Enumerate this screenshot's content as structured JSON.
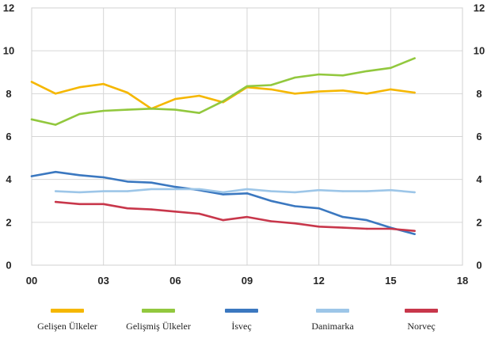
{
  "chart_data": {
    "type": "line",
    "x_tick_labels": [
      "00",
      "03",
      "06",
      "09",
      "12",
      "15",
      "18"
    ],
    "y_tick_labels": [
      "0",
      "2",
      "4",
      "6",
      "8",
      "10",
      "12"
    ],
    "xlim": [
      2000,
      2018
    ],
    "ylim": [
      0,
      12
    ],
    "grid": true,
    "legend_position": "bottom",
    "series": [
      {
        "name": "Gelişen Ülkeler",
        "color": "#F5B700",
        "x": [
          2000,
          2001,
          2002,
          2003,
          2004,
          2005,
          2006,
          2007,
          2008,
          2009,
          2010,
          2011,
          2012,
          2013,
          2014,
          2015,
          2016
        ],
        "values": [
          8.55,
          8.0,
          8.3,
          8.45,
          8.05,
          7.3,
          7.75,
          7.9,
          7.6,
          8.3,
          8.2,
          8.0,
          8.1,
          8.15,
          8.0,
          8.2,
          8.05
        ]
      },
      {
        "name": "Gelişmiş Ülkeler",
        "color": "#92C83E",
        "x": [
          2000,
          2001,
          2002,
          2003,
          2004,
          2005,
          2006,
          2007,
          2008,
          2009,
          2010,
          2011,
          2012,
          2013,
          2014,
          2015,
          2016
        ],
        "values": [
          6.8,
          6.55,
          7.05,
          7.2,
          7.25,
          7.3,
          7.25,
          7.1,
          7.65,
          8.35,
          8.4,
          8.75,
          8.9,
          8.85,
          9.05,
          9.2,
          9.65
        ]
      },
      {
        "name": "İsveç",
        "color": "#3B78C0",
        "x": [
          2000,
          2001,
          2002,
          2003,
          2004,
          2005,
          2006,
          2007,
          2008,
          2009,
          2010,
          2011,
          2012,
          2013,
          2014,
          2015,
          2016
        ],
        "values": [
          4.15,
          4.35,
          4.2,
          4.1,
          3.9,
          3.85,
          3.65,
          3.5,
          3.3,
          3.35,
          3.0,
          2.75,
          2.65,
          2.25,
          2.1,
          1.75,
          1.45
        ]
      },
      {
        "name": "Danimarka",
        "color": "#9DC6E8",
        "x": [
          2001,
          2002,
          2003,
          2004,
          2005,
          2006,
          2007,
          2008,
          2009,
          2010,
          2011,
          2012,
          2013,
          2014,
          2015,
          2016
        ],
        "values": [
          3.45,
          3.4,
          3.45,
          3.45,
          3.55,
          3.55,
          3.55,
          3.4,
          3.55,
          3.45,
          3.4,
          3.5,
          3.45,
          3.45,
          3.5,
          3.4
        ]
      },
      {
        "name": "Norveç",
        "color": "#C8374B",
        "x": [
          2001,
          2002,
          2003,
          2004,
          2005,
          2006,
          2007,
          2008,
          2009,
          2010,
          2011,
          2012,
          2013,
          2014,
          2015,
          2016
        ],
        "values": [
          2.95,
          2.85,
          2.85,
          2.65,
          2.6,
          2.5,
          2.4,
          2.1,
          2.25,
          2.05,
          1.95,
          1.8,
          1.75,
          1.7,
          1.7,
          1.6
        ]
      }
    ]
  }
}
